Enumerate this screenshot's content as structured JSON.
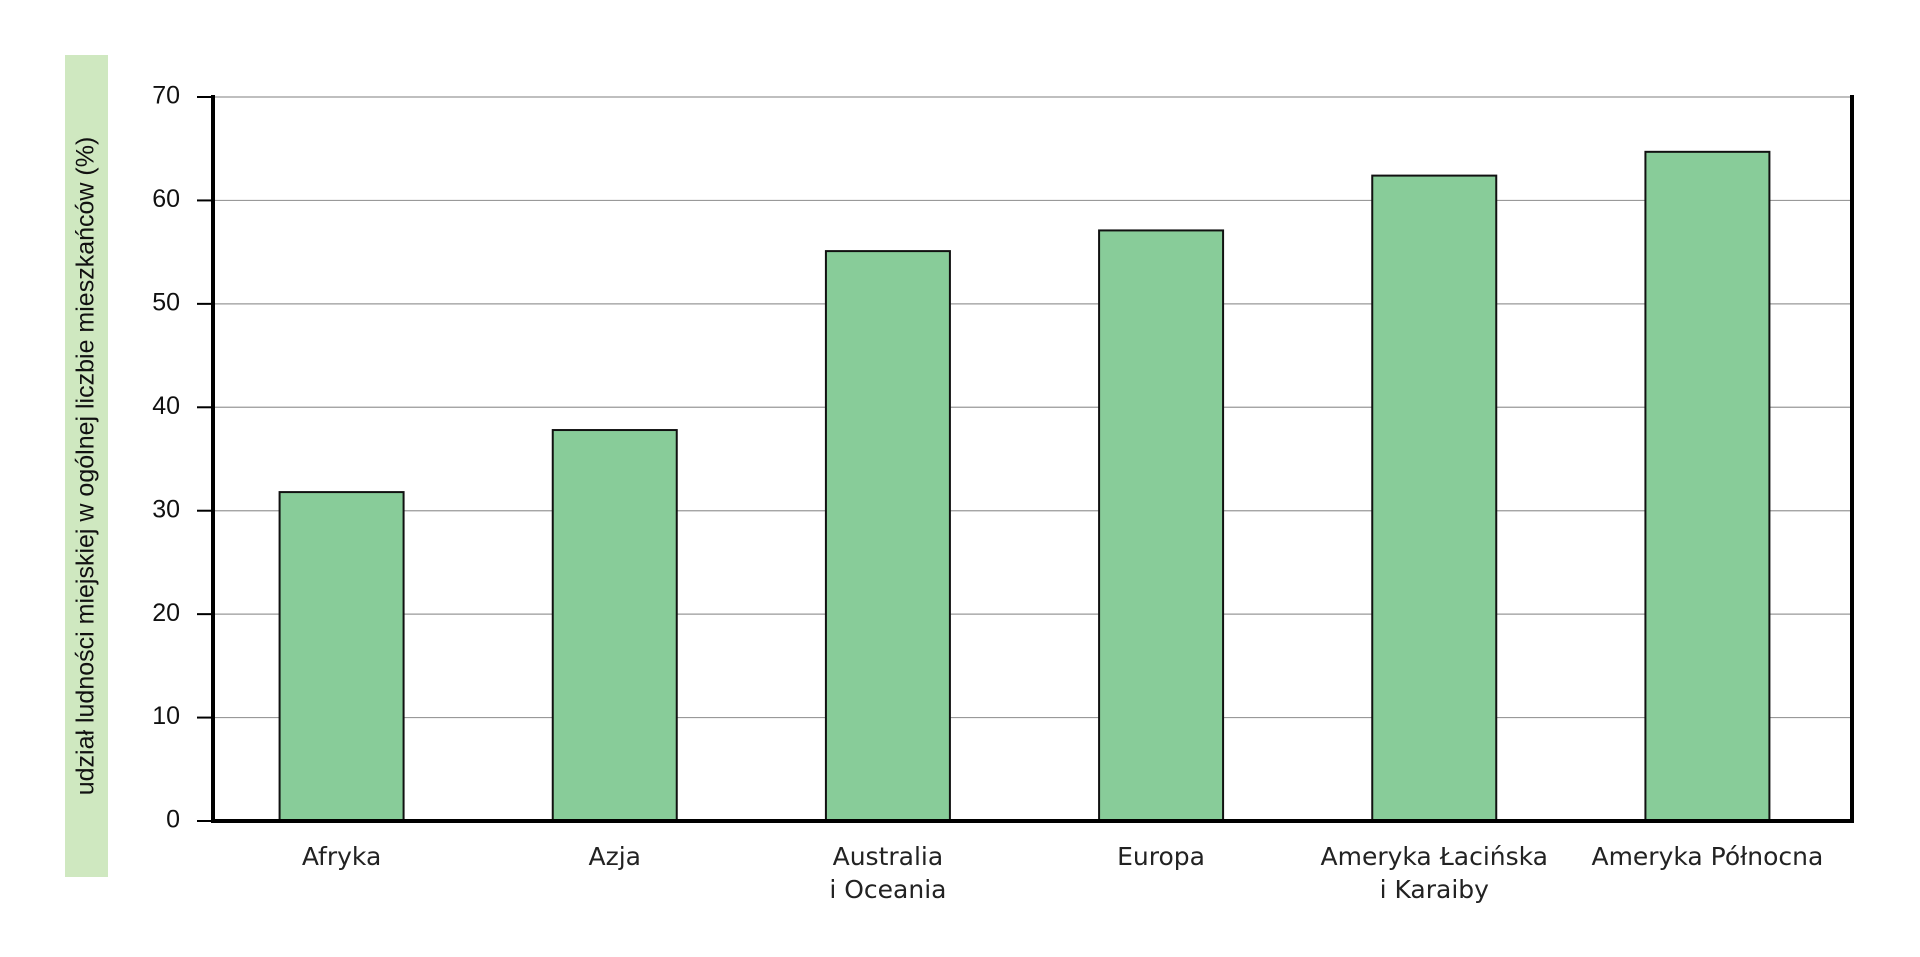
{
  "chart_data": {
    "type": "bar",
    "y_label": "udział ludności miejskiej w ogólnej liczbie mieszkańców (%)",
    "categories": [
      "Afryka",
      "Azja",
      "Australia\ni Oceania",
      "Europa",
      "Ameryka Łacińska\ni Karaiby",
      "Ameryka Północna"
    ],
    "values": [
      31.8,
      37.8,
      55.1,
      57.1,
      62.4,
      64.7
    ],
    "color": "#88cc99",
    "ylim": [
      0,
      70
    ],
    "yticks": [
      0,
      10,
      20,
      30,
      40,
      50,
      60,
      70
    ],
    "grid": true
  }
}
